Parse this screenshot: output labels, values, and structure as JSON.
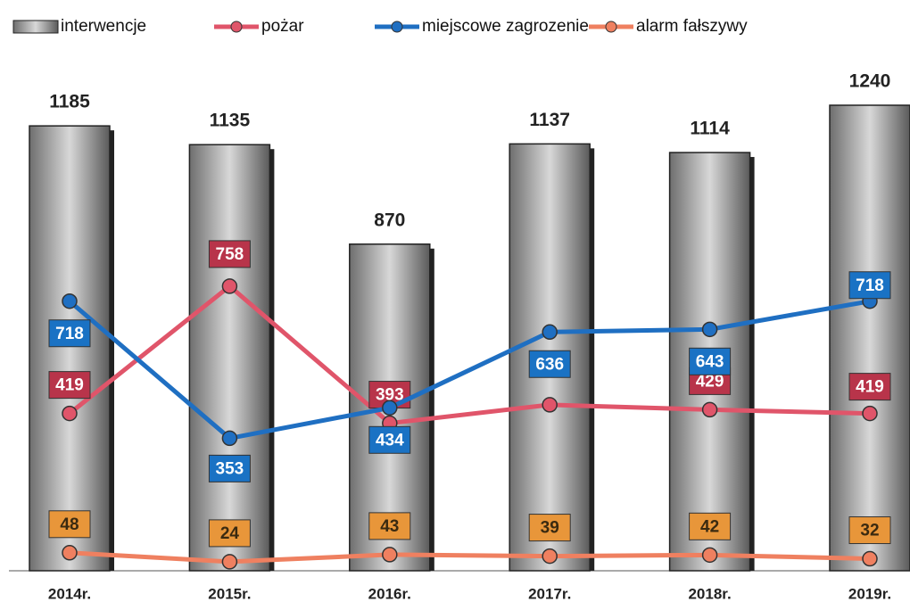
{
  "chart_data": {
    "type": "bar_line",
    "categories": [
      "2014r.",
      "2015r.",
      "2016r.",
      "2017r.",
      "2018r.",
      "2019r."
    ],
    "series": [
      {
        "name": "interwencje",
        "type": "bar",
        "color": "#8a8a8a",
        "values": [
          1185,
          1135,
          870,
          1137,
          1114,
          1240
        ]
      },
      {
        "name": "pożar",
        "type": "line",
        "color": "#e0556a",
        "label_color": "#b8344a",
        "values": [
          419,
          758,
          393,
          442,
          429,
          419
        ],
        "value_labels": [
          419,
          758,
          393,
          null,
          429,
          419
        ]
      },
      {
        "name": "miejscowe zagrozenie",
        "type": "line",
        "color": "#1f6fc2",
        "label_color": "#1a72c4",
        "values": [
          718,
          353,
          434,
          636,
          643,
          718
        ]
      },
      {
        "name": "alarm fałszywy",
        "type": "line",
        "color": "#ef8060",
        "label_color": "#e8963a",
        "values": [
          48,
          24,
          43,
          39,
          42,
          32
        ]
      }
    ]
  }
}
